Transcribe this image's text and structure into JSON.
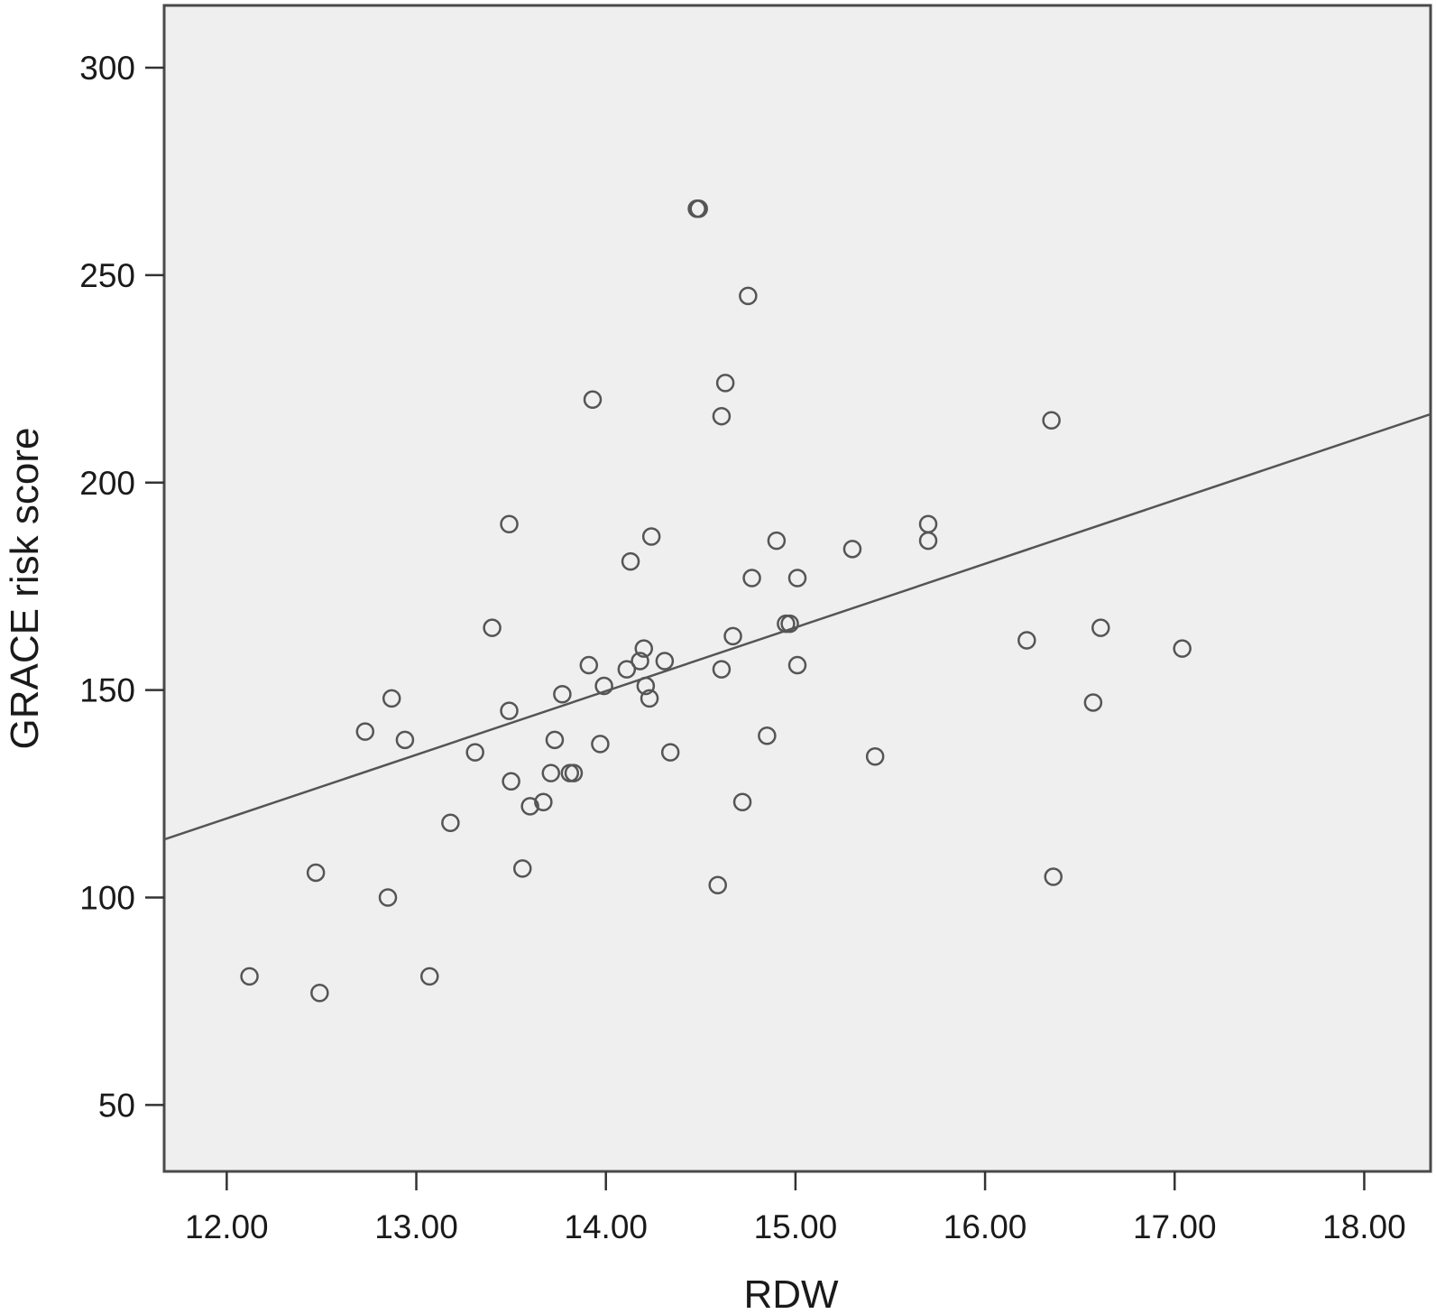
{
  "chart_data": {
    "type": "scatter",
    "title": "",
    "xlabel": "RDW",
    "ylabel": "GRACE risk score",
    "xlim": [
      11.67,
      18.35
    ],
    "ylim": [
      34,
      315
    ],
    "x_ticks": [
      12,
      13,
      14,
      15,
      16,
      17,
      18
    ],
    "x_tick_labels": [
      "12.00",
      "13.00",
      "14.00",
      "15.00",
      "16.00",
      "17.00",
      "18.00"
    ],
    "y_ticks": [
      50,
      100,
      150,
      200,
      250,
      300
    ],
    "y_tick_labels": [
      "50",
      "100",
      "150",
      "200",
      "250",
      "300"
    ],
    "grid": false,
    "legend": "none",
    "colors": {
      "plot_background": "#efefef",
      "marker": "#555555",
      "fit_line": "#555555",
      "axis": "#333333"
    },
    "series": [
      {
        "marker": "open-circle",
        "points": [
          [
            12.12,
            81
          ],
          [
            12.47,
            106
          ],
          [
            12.49,
            77
          ],
          [
            12.73,
            140
          ],
          [
            12.85,
            100
          ],
          [
            12.87,
            148
          ],
          [
            12.94,
            138
          ],
          [
            13.07,
            81
          ],
          [
            13.18,
            118
          ],
          [
            13.31,
            135
          ],
          [
            13.4,
            165
          ],
          [
            13.49,
            190
          ],
          [
            13.49,
            145
          ],
          [
            13.5,
            128
          ],
          [
            13.56,
            107
          ],
          [
            13.6,
            122
          ],
          [
            13.67,
            123
          ],
          [
            13.71,
            130
          ],
          [
            13.73,
            138
          ],
          [
            13.77,
            149
          ],
          [
            13.81,
            130
          ],
          [
            13.83,
            130
          ],
          [
            13.91,
            156
          ],
          [
            13.93,
            220
          ],
          [
            13.97,
            137
          ],
          [
            13.99,
            151
          ],
          [
            14.11,
            155
          ],
          [
            14.13,
            181
          ],
          [
            14.18,
            157
          ],
          [
            14.2,
            160
          ],
          [
            14.21,
            151
          ],
          [
            14.23,
            148
          ],
          [
            14.24,
            187
          ],
          [
            14.31,
            157
          ],
          [
            14.34,
            135
          ],
          [
            14.48,
            266
          ],
          [
            14.49,
            266
          ],
          [
            14.59,
            103
          ],
          [
            14.61,
            216
          ],
          [
            14.61,
            155
          ],
          [
            14.63,
            224
          ],
          [
            14.67,
            163
          ],
          [
            14.72,
            123
          ],
          [
            14.75,
            245
          ],
          [
            14.77,
            177
          ],
          [
            14.85,
            139
          ],
          [
            14.9,
            186
          ],
          [
            14.95,
            166
          ],
          [
            14.97,
            166
          ],
          [
            15.01,
            177
          ],
          [
            15.01,
            156
          ],
          [
            15.3,
            184
          ],
          [
            15.42,
            134
          ],
          [
            15.7,
            190
          ],
          [
            15.7,
            186
          ],
          [
            16.22,
            162
          ],
          [
            16.35,
            215
          ],
          [
            16.36,
            105
          ],
          [
            16.57,
            147
          ],
          [
            16.61,
            165
          ],
          [
            17.04,
            160
          ]
        ]
      }
    ],
    "fit_line": {
      "x": [
        11.67,
        18.35
      ],
      "y": [
        114,
        216.5
      ]
    }
  }
}
